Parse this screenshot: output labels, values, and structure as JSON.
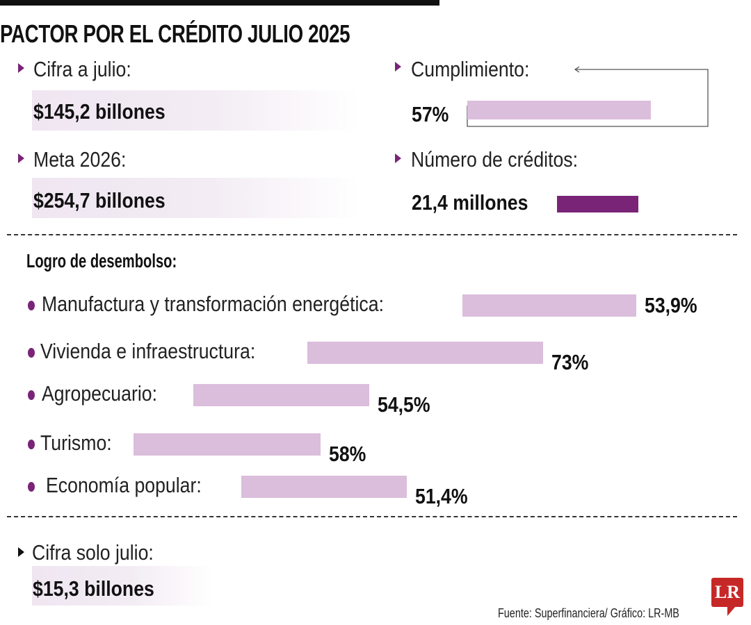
{
  "title": "PACTOR POR EL CRÉDITO JULIO 2025",
  "colors": {
    "accent": "#7a2478",
    "bar_light": "#dbbddc",
    "logo": "#c62828"
  },
  "stats": {
    "cifra_julio": {
      "label": "Cifra a julio:",
      "value": "$145,2 billones"
    },
    "meta_2026": {
      "label": "Meta 2026:",
      "value": "$254,7 billones"
    },
    "cumplimiento": {
      "label": "Cumplimiento:",
      "value": "57%",
      "percent": 57
    },
    "numero_creditos": {
      "label": "Número de créditos:",
      "value": "21,4 millones"
    },
    "cifra_solo_julio": {
      "label": "Cifra solo julio:",
      "value": "$15,3 billones"
    }
  },
  "section_title": "Logro de desembolso:",
  "chart_data": {
    "type": "bar",
    "orientation": "horizontal",
    "title": "Logro de desembolso:",
    "categories": [
      "Manufactura y transformación energética:",
      "Vivienda e infraestructura:",
      "Agropecuario:",
      "Turismo:",
      "Economía popular:"
    ],
    "values": [
      53.9,
      73,
      54.5,
      58,
      51.4
    ],
    "value_labels": [
      "53,9%",
      "73%",
      "54,5%",
      "58%",
      "51,4%"
    ],
    "unit": "%"
  },
  "footer": {
    "source": "Fuente:  Superfinanciera/ Gráfico: LR-MB",
    "logo": "LR"
  }
}
